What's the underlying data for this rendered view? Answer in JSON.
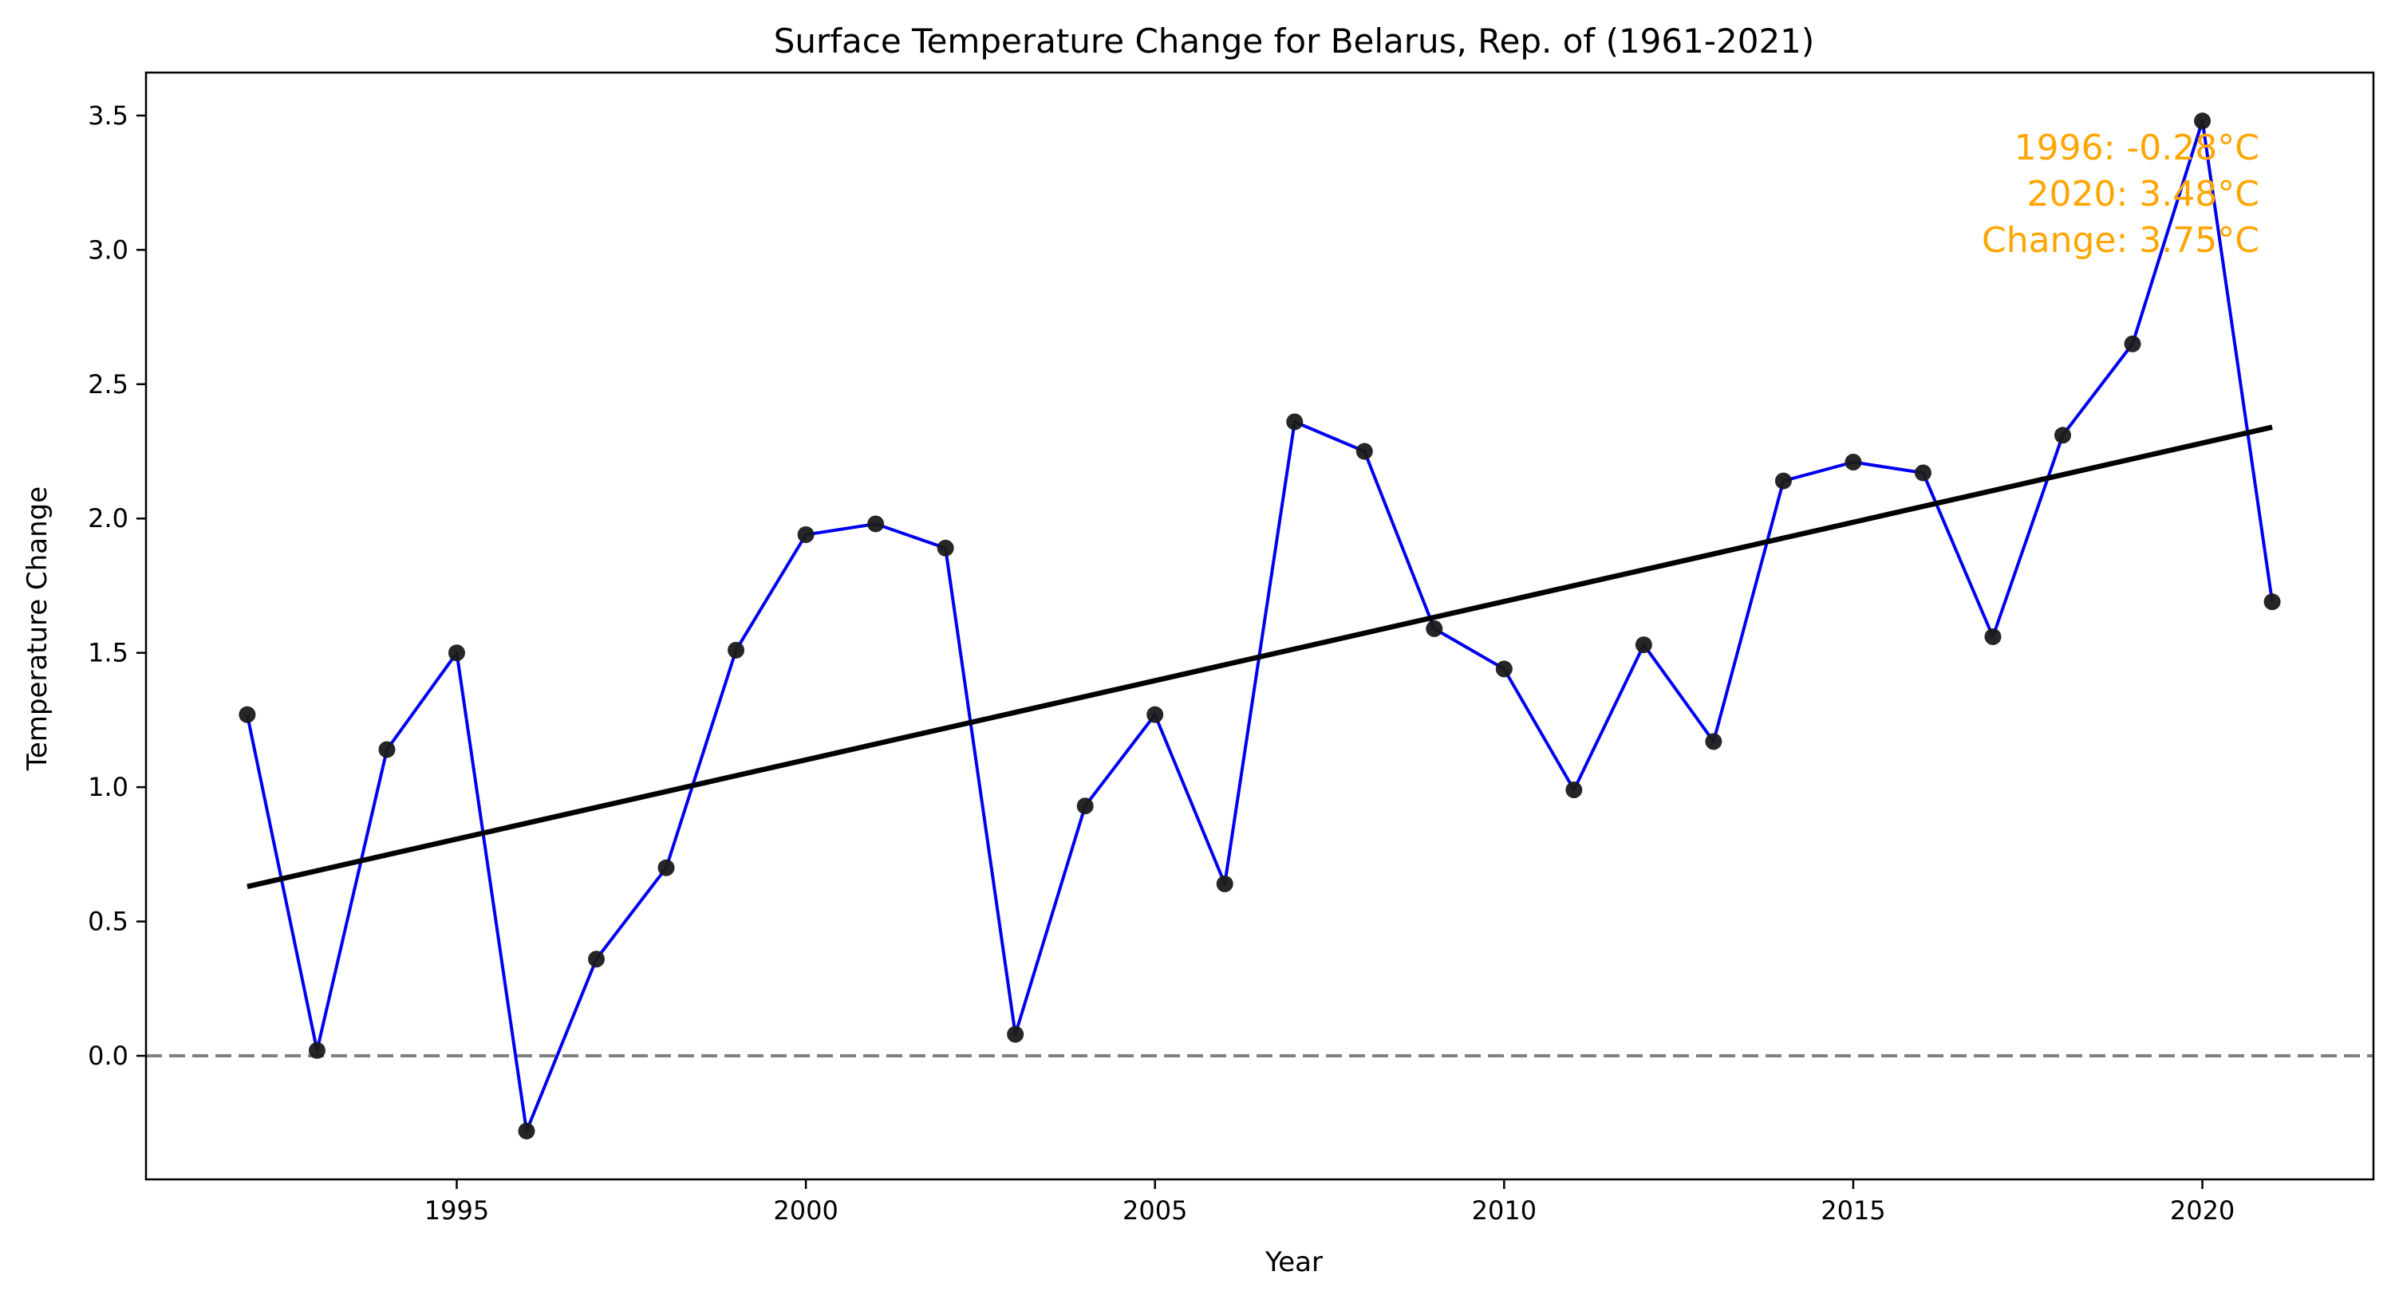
{
  "chart_data": {
    "type": "line",
    "title": "Surface Temperature Change for Belarus, Rep. of (1961-2021)",
    "xlabel": "Year",
    "ylabel": "Temperature Change",
    "xlim": [
      1990.55,
      2022.45
    ],
    "ylim": [
      -0.46,
      3.66
    ],
    "x_ticks": [
      1995,
      2000,
      2005,
      2010,
      2015,
      2020
    ],
    "y_ticks": [
      0.0,
      0.5,
      1.0,
      1.5,
      2.0,
      2.5,
      3.0,
      3.5
    ],
    "x_tick_labels": [
      "1995",
      "2000",
      "2005",
      "2010",
      "2015",
      "2020"
    ],
    "y_tick_labels": [
      "0.0",
      "0.5",
      "1.0",
      "1.5",
      "2.0",
      "2.5",
      "3.0",
      "3.5"
    ],
    "grid": false,
    "series": [
      {
        "color": "#0000ee",
        "marker_color": "#1a1a1a",
        "x": [
          1992,
          1993,
          1994,
          1995,
          1996,
          1997,
          1998,
          1999,
          2000,
          2001,
          2002,
          2003,
          2004,
          2005,
          2006,
          2007,
          2008,
          2009,
          2010,
          2011,
          2012,
          2013,
          2014,
          2015,
          2016,
          2017,
          2018,
          2019,
          2020,
          2021
        ],
        "y": [
          1.27,
          0.02,
          1.14,
          1.5,
          -0.28,
          0.36,
          0.7,
          1.51,
          1.94,
          1.98,
          1.89,
          0.08,
          0.93,
          1.27,
          0.64,
          2.36,
          2.25,
          1.59,
          1.44,
          0.99,
          1.53,
          1.17,
          2.14,
          2.21,
          2.17,
          1.56,
          2.31,
          2.65,
          3.48,
          1.69
        ]
      }
    ],
    "trend_line": {
      "x": [
        1992,
        2021
      ],
      "y": [
        0.63,
        2.34
      ],
      "color": "#000000"
    },
    "reference_line": {
      "y": 0.0,
      "style": "dashed",
      "color": "#808080"
    },
    "annotation": {
      "lines": [
        "1996: -0.28°C",
        "2020: 3.48°C",
        "Change: 3.75°C"
      ],
      "color": "#ffa500",
      "placement": "top-right"
    }
  }
}
